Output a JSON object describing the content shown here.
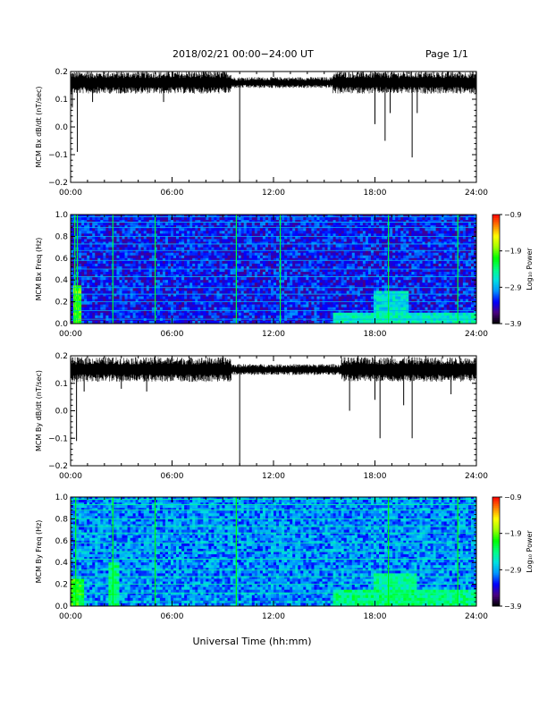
{
  "header": {
    "title": "2018/02/21  00:00−24:00 UT",
    "page": "Page 1/1"
  },
  "footer": {
    "xlabel": "Universal Time (hh:mm)"
  },
  "colors": {
    "trace": "#000000",
    "colormap": [
      "#000000",
      "#4b0082",
      "#0000ff",
      "#0096ff",
      "#00e0e0",
      "#00ff80",
      "#00ff00",
      "#a0ff00",
      "#ffff00",
      "#ff8000",
      "#ff0000"
    ]
  },
  "chart_data": [
    {
      "type": "line",
      "ylabel": "MCM Bx dB/dt (nT/sec)",
      "x_ticks": [
        "00:00",
        "06:00",
        "12:00",
        "18:00",
        "24:00"
      ],
      "y_ticks": [
        "0.2",
        "0.1",
        "0.0",
        "−0.1",
        "−0.2"
      ],
      "y_tick_values": [
        0.2,
        0.1,
        0.0,
        -0.1,
        -0.2
      ],
      "ylim": [
        -0.2,
        0.2
      ],
      "xlim_hours": [
        0,
        24
      ],
      "baseline": 0.16,
      "noise_base": 0.02,
      "noise_loud": 0.04,
      "loud_ranges_hours": [
        [
          0,
          3
        ],
        [
          3,
          9.5
        ],
        [
          15.5,
          24
        ]
      ],
      "dips": [
        {
          "hour": 0.1,
          "y": 0.07
        },
        {
          "hour": 0.4,
          "y": -0.09
        },
        {
          "hour": 1.3,
          "y": 0.09
        },
        {
          "hour": 5.5,
          "y": 0.09
        },
        {
          "hour": 10.0,
          "y": -0.2
        },
        {
          "hour": 18.0,
          "y": 0.01
        },
        {
          "hour": 18.6,
          "y": -0.05
        },
        {
          "hour": 18.9,
          "y": 0.05
        },
        {
          "hour": 20.2,
          "y": -0.11
        },
        {
          "hour": 20.5,
          "y": 0.05
        }
      ]
    },
    {
      "type": "heatmap",
      "ylabel": "MCM Bx Freq (Hz)",
      "x_ticks": [
        "00:00",
        "06:00",
        "12:00",
        "18:00",
        "24:00"
      ],
      "y_ticks": [
        "1.0",
        "0.8",
        "0.6",
        "0.4",
        "0.2",
        "0.0"
      ],
      "y_tick_values": [
        1.0,
        0.8,
        0.6,
        0.4,
        0.2,
        0.0
      ],
      "ylim": [
        0,
        1.0
      ],
      "colorbar": {
        "label": "Log₁₀ Power",
        "ticks": [
          "−0.9",
          "−1.9",
          "−2.9",
          "−3.9"
        ],
        "tick_values": [
          -0.9,
          -1.9,
          -2.9,
          -3.9
        ],
        "range": [
          -3.9,
          -0.9
        ]
      },
      "background_level": -3.3,
      "harmonic_lines_hz": [
        0.04,
        0.12,
        0.2,
        0.27,
        0.33,
        0.43,
        0.5,
        0.58,
        0.67,
        0.73,
        0.8,
        0.88,
        0.93,
        0.98
      ],
      "harmonic_level": -2.9,
      "vertical_streaks_hours": [
        0.25,
        0.4,
        2.5,
        5.0,
        9.8,
        12.4,
        18.8,
        22.9
      ],
      "streak_level": -2.2,
      "activity": [
        {
          "start_hour": 0.2,
          "end_hour": 0.7,
          "max_hz": 0.35,
          "level": -2.0
        },
        {
          "start_hour": 15.5,
          "end_hour": 24,
          "max_hz": 0.1,
          "level": -2.6
        },
        {
          "start_hour": 18.0,
          "end_hour": 20.0,
          "max_hz": 0.3,
          "level": -2.7
        }
      ]
    },
    {
      "type": "line",
      "ylabel": "MCM By dB/dt (nT/sec)",
      "x_ticks": [
        "00:00",
        "06:00",
        "12:00",
        "18:00",
        "24:00"
      ],
      "y_ticks": [
        "0.2",
        "0.1",
        "0.0",
        "−0.1",
        "−0.2"
      ],
      "y_tick_values": [
        0.2,
        0.1,
        0.0,
        -0.1,
        -0.2
      ],
      "ylim": [
        -0.2,
        0.2
      ],
      "xlim_hours": [
        0,
        24
      ],
      "baseline": 0.15,
      "noise_base": 0.02,
      "noise_loud": 0.045,
      "loud_ranges_hours": [
        [
          0,
          9.5
        ],
        [
          16,
          24
        ]
      ],
      "dips": [
        {
          "hour": 0.35,
          "y": -0.11
        },
        {
          "hour": 0.8,
          "y": 0.07
        },
        {
          "hour": 3.0,
          "y": 0.08
        },
        {
          "hour": 4.5,
          "y": 0.07
        },
        {
          "hour": 10.0,
          "y": -0.2
        },
        {
          "hour": 16.5,
          "y": 0.0
        },
        {
          "hour": 18.0,
          "y": 0.04
        },
        {
          "hour": 18.3,
          "y": -0.1
        },
        {
          "hour": 19.7,
          "y": 0.02
        },
        {
          "hour": 20.2,
          "y": -0.1
        },
        {
          "hour": 22.5,
          "y": 0.06
        }
      ]
    },
    {
      "type": "heatmap",
      "ylabel": "MCM By Freq (Hz)",
      "x_ticks": [
        "00:00",
        "06:00",
        "12:00",
        "18:00",
        "24:00"
      ],
      "y_ticks": [
        "1.0",
        "0.8",
        "0.6",
        "0.4",
        "0.2",
        "0.0"
      ],
      "y_tick_values": [
        1.0,
        0.8,
        0.6,
        0.4,
        0.2,
        0.0
      ],
      "ylim": [
        0,
        1.0
      ],
      "colorbar": {
        "label": "Log₁₀ Power",
        "ticks": [
          "−0.9",
          "−1.9",
          "−2.9",
          "−3.9"
        ],
        "tick_values": [
          -0.9,
          -1.9,
          -2.9,
          -3.9
        ],
        "range": [
          -3.9,
          -0.9
        ]
      },
      "background_level": -3.0,
      "harmonic_lines_hz": [
        0.04,
        0.12,
        0.2,
        0.27,
        0.33,
        0.43,
        0.5,
        0.58,
        0.67,
        0.73,
        0.8,
        0.88,
        0.93,
        0.98
      ],
      "harmonic_level": -2.5,
      "vertical_streaks_hours": [
        0.3,
        2.5,
        5.0,
        9.8,
        18.8,
        22.9
      ],
      "streak_level": -2.1,
      "activity": [
        {
          "start_hour": 0.0,
          "end_hour": 0.8,
          "max_hz": 0.25,
          "level": -2.1
        },
        {
          "start_hour": 2.3,
          "end_hour": 2.8,
          "max_hz": 0.4,
          "level": -2.4
        },
        {
          "start_hour": 15.5,
          "end_hour": 24,
          "max_hz": 0.15,
          "level": -2.4
        },
        {
          "start_hour": 18.0,
          "end_hour": 20.5,
          "max_hz": 0.3,
          "level": -2.5
        }
      ]
    }
  ]
}
